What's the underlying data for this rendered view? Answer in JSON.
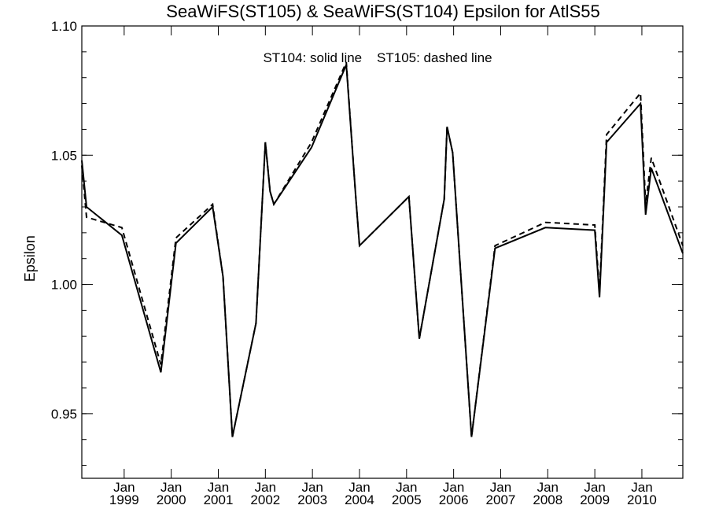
{
  "chart_data": {
    "type": "line",
    "title": "SeaWiFS(ST105) & SeaWiFS(ST104)  Epsilon for AtlS55",
    "annotation": "ST104: solid line    ST105: dashed line",
    "xlabel": "",
    "ylabel": "Epsilon",
    "xlim": [
      1998.1,
      2010.87
    ],
    "ylim": [
      0.925,
      1.1
    ],
    "y_major_ticks": [
      0.95,
      1.0,
      1.05,
      1.1
    ],
    "y_tick_labels": [
      "0.95",
      "1.00",
      "1.05",
      "1.10"
    ],
    "y_minor_step": 0.01,
    "x_tick_marks": [
      1999,
      2000,
      2001,
      2002,
      2003,
      2004,
      2005,
      2006,
      2007,
      2008,
      2009,
      2010
    ],
    "x_tick_labels": [
      {
        "month": "Jan",
        "year": "1999"
      },
      {
        "month": "Jan",
        "year": "2000"
      },
      {
        "month": "Jan",
        "year": "2001"
      },
      {
        "month": "Jan",
        "year": "2002"
      },
      {
        "month": "Jan",
        "year": "2003"
      },
      {
        "month": "Jan",
        "year": "2004"
      },
      {
        "month": "Jan",
        "year": "2005"
      },
      {
        "month": "Jan",
        "year": "2006"
      },
      {
        "month": "Jan",
        "year": "2007"
      },
      {
        "month": "Jan",
        "year": "2008"
      },
      {
        "month": "Jan",
        "year": "2009"
      },
      {
        "month": "Jan",
        "year": "2010"
      }
    ],
    "grid": false,
    "series": [
      {
        "name": "ST104",
        "style": "solid",
        "points": [
          [
            1998.1,
            1.048
          ],
          [
            1998.2,
            1.03
          ],
          [
            1998.95,
            1.019
          ],
          [
            1999.78,
            0.966
          ],
          [
            2000.1,
            1.016
          ],
          [
            2000.88,
            1.03
          ],
          [
            2001.1,
            1.003
          ],
          [
            2001.3,
            0.941
          ],
          [
            2001.8,
            0.985
          ],
          [
            2002.0,
            1.055
          ],
          [
            2002.1,
            1.036
          ],
          [
            2002.18,
            1.031
          ],
          [
            2002.98,
            1.053
          ],
          [
            2003.72,
            1.085
          ],
          [
            2003.92,
            1.034
          ],
          [
            2004.0,
            1.015
          ],
          [
            2005.05,
            1.034
          ],
          [
            2005.27,
            0.979
          ],
          [
            2005.8,
            1.033
          ],
          [
            2005.86,
            1.061
          ],
          [
            2005.98,
            1.051
          ],
          [
            2006.38,
            0.941
          ],
          [
            2006.88,
            1.014
          ],
          [
            2007.95,
            1.022
          ],
          [
            2009.0,
            1.021
          ],
          [
            2009.1,
            0.995
          ],
          [
            2009.25,
            1.055
          ],
          [
            2009.97,
            1.07
          ],
          [
            2010.08,
            1.027
          ],
          [
            2010.2,
            1.045
          ],
          [
            2010.87,
            1.012
          ]
        ]
      },
      {
        "name": "ST105",
        "style": "dashed",
        "points": [
          [
            1998.1,
            1.046
          ],
          [
            1998.2,
            1.026
          ],
          [
            1998.95,
            1.022
          ],
          [
            1999.78,
            0.969
          ],
          [
            2000.1,
            1.018
          ],
          [
            2000.88,
            1.031
          ],
          [
            2001.1,
            1.003
          ],
          [
            2001.3,
            0.941
          ],
          [
            2001.8,
            0.985
          ],
          [
            2002.0,
            1.055
          ],
          [
            2002.1,
            1.036
          ],
          [
            2002.18,
            1.031
          ],
          [
            2002.98,
            1.055
          ],
          [
            2003.72,
            1.086
          ],
          [
            2003.92,
            1.034
          ],
          [
            2004.0,
            1.015
          ],
          [
            2005.05,
            1.034
          ],
          [
            2005.27,
            0.979
          ],
          [
            2005.8,
            1.033
          ],
          [
            2005.86,
            1.061
          ],
          [
            2005.98,
            1.051
          ],
          [
            2006.38,
            0.941
          ],
          [
            2006.88,
            1.015
          ],
          [
            2007.95,
            1.024
          ],
          [
            2009.0,
            1.023
          ],
          [
            2009.1,
            0.997
          ],
          [
            2009.25,
            1.058
          ],
          [
            2009.97,
            1.074
          ],
          [
            2010.08,
            1.031
          ],
          [
            2010.2,
            1.049
          ],
          [
            2010.87,
            1.015
          ]
        ]
      }
    ]
  }
}
